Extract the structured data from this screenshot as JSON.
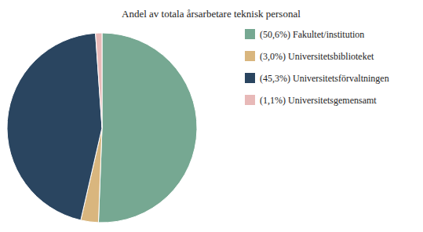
{
  "chart_data": {
    "type": "pie",
    "title": "Andel av totala årsarbetare teknisk personal",
    "categories": [
      "(50,6%) Fakultet/institution",
      "(3,0%) Universitetsbiblioteket",
      "(45,3%) Universitetsförvaltningen",
      "(1,1%) Universitetsgemensamt"
    ],
    "values": [
      50.6,
      3.0,
      45.3,
      1.1
    ],
    "colors": [
      "#76a892",
      "#d9b67e",
      "#2a4560",
      "#e8b9b8"
    ],
    "legend": "right"
  }
}
